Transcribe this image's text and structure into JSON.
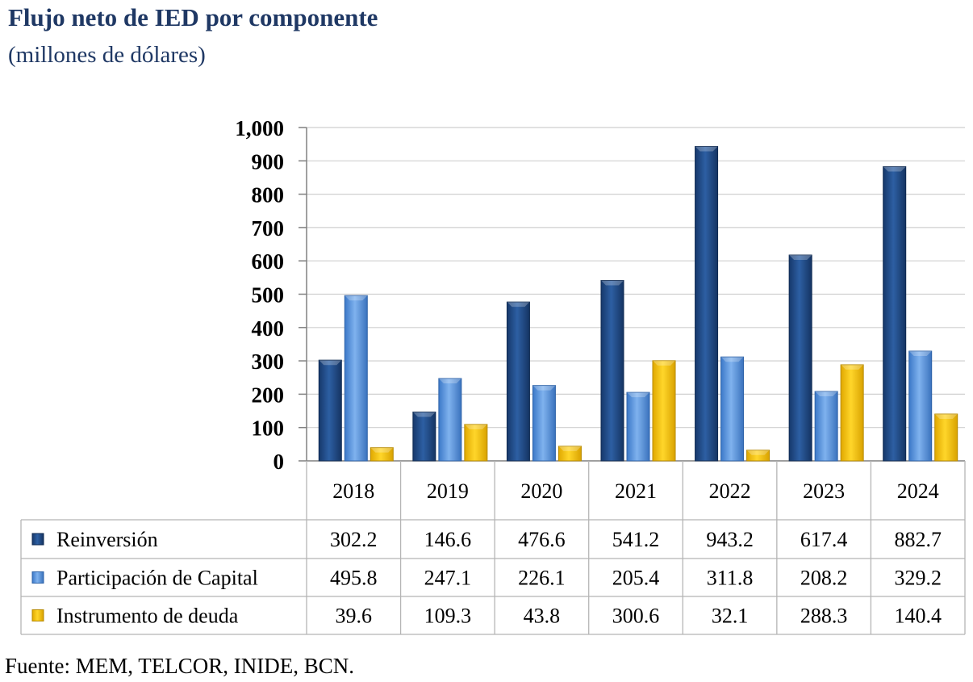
{
  "header": {
    "title": "Flujo neto de IED por componente",
    "subtitle": "(millones de dólares)"
  },
  "footer": {
    "source": "Fuente: MEM, TELCOR, INIDE, BCN."
  },
  "colors": {
    "Reinversión": "#1f4e8c",
    "Participación de Capital": "#4f8fdb",
    "Instrumento de deuda": "#f5c000",
    "grid": "#c8c8c8",
    "title": "#1f3864"
  },
  "chart_data": {
    "type": "bar",
    "title": "Flujo neto de IED por componente",
    "subtitle": "(millones de dólares)",
    "categories": [
      "2018",
      "2019",
      "2020",
      "2021",
      "2022",
      "2023",
      "2024"
    ],
    "series": [
      {
        "name": "Reinversión",
        "values": [
          302.2,
          146.6,
          476.6,
          541.2,
          943.2,
          617.4,
          882.7
        ],
        "labels": [
          "302.2",
          "146.6",
          "476.6",
          "541.2",
          "943.2",
          "617.4",
          "882.7"
        ]
      },
      {
        "name": "Participación de Capital",
        "values": [
          495.8,
          247.1,
          226.1,
          205.4,
          311.8,
          208.2,
          329.2
        ],
        "labels": [
          "495.8",
          "247.1",
          "226.1",
          "205.4",
          "311.8",
          "208.2",
          "329.2"
        ]
      },
      {
        "name": "Instrumento de deuda",
        "values": [
          39.6,
          109.3,
          43.8,
          300.6,
          32.1,
          288.3,
          140.4
        ],
        "labels": [
          "39.6",
          "109.3",
          "43.8",
          "300.6",
          "32.1",
          "288.3",
          "140.4"
        ]
      }
    ],
    "ylim": [
      0,
      1000
    ],
    "yticks": [
      0,
      100,
      200,
      300,
      400,
      500,
      600,
      700,
      800,
      900,
      1000
    ],
    "ytick_labels": [
      "0",
      "100",
      "200",
      "300",
      "400",
      "500",
      "600",
      "700",
      "800",
      "900",
      "1,000"
    ],
    "grid": true,
    "legend": "data-table-below"
  }
}
